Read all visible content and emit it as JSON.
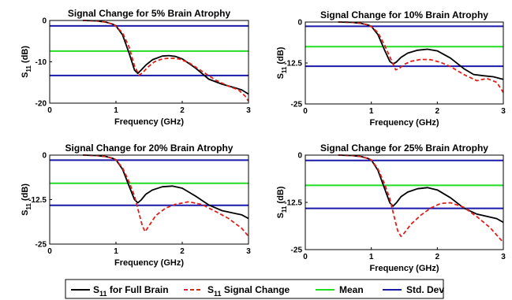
{
  "colors": {
    "full_brain": "#000000",
    "signal_change": "#e0201b",
    "mean": "#22dd22",
    "std_dev": "#1a1aaa"
  },
  "legend": {
    "items": [
      {
        "main": "S",
        "sub": "11",
        "rest": " for Full Brain",
        "color": "#000000",
        "dash": ""
      },
      {
        "main": "S",
        "sub": "11",
        "rest": " Signal Change",
        "color": "#e0201b",
        "dash": "5,3"
      },
      {
        "main": "Mean",
        "sub": "",
        "rest": "",
        "color": "#22dd22",
        "dash": ""
      },
      {
        "main": "Std. Dev",
        "sub": "",
        "rest": "",
        "color": "#1a1aaa",
        "dash": ""
      }
    ]
  },
  "chart_data": [
    {
      "type": "line",
      "title": "Signal Change for 5% Brain Atrophy",
      "xlabel": "Frequency (GHz)",
      "ylabel_main": "S",
      "ylabel_sub": "11",
      "ylabel_unit": " (dB)",
      "xlim": [
        0,
        3
      ],
      "ylim": [
        -20,
        0
      ],
      "xticks": [
        0,
        1,
        2,
        3
      ],
      "yticks": [
        0,
        -10,
        -20
      ],
      "ytick_labels": [
        "0",
        "-10",
        "-20"
      ],
      "hlines": {
        "mean": -7.4,
        "std_upper": -1.3,
        "std_lower": -13.3
      },
      "series": [
        {
          "key": "full",
          "x": [
            0.5,
            0.7,
            0.85,
            0.95,
            1.0,
            1.1,
            1.2,
            1.28,
            1.33,
            1.38,
            1.45,
            1.55,
            1.7,
            1.8,
            1.9,
            2.0,
            2.2,
            2.4,
            2.6,
            2.8,
            2.9,
            3.0
          ],
          "y": [
            0,
            -0.1,
            -0.4,
            -0.9,
            -1.3,
            -3.5,
            -8.0,
            -12.0,
            -12.8,
            -12.0,
            -10.8,
            -9.5,
            -8.6,
            -8.5,
            -8.7,
            -9.3,
            -11.5,
            -14.2,
            -15.4,
            -16.3,
            -16.8,
            -17.8
          ]
        },
        {
          "key": "change",
          "x": [
            0.5,
            0.7,
            0.85,
            0.95,
            1.0,
            1.1,
            1.2,
            1.28,
            1.35,
            1.4,
            1.48,
            1.58,
            1.7,
            1.82,
            1.95,
            2.1,
            2.3,
            2.5,
            2.7,
            2.85,
            2.95,
            3.0
          ],
          "y": [
            0,
            -0.1,
            -0.4,
            -0.9,
            -1.4,
            -3.0,
            -6.5,
            -11.0,
            -13.2,
            -12.7,
            -11.3,
            -10.0,
            -9.3,
            -9.1,
            -9.3,
            -10.2,
            -12.3,
            -14.4,
            -15.9,
            -16.8,
            -18.3,
            -19.5
          ]
        }
      ]
    },
    {
      "type": "line",
      "title": "Signal Change for 10% Brain Atrophy",
      "xlabel": "Frequency (GHz)",
      "ylabel_main": "S",
      "ylabel_sub": "11",
      "ylabel_unit": " (dB)",
      "xlim": [
        0,
        3
      ],
      "ylim": [
        -25,
        0
      ],
      "xticks": [
        0,
        1,
        2,
        3
      ],
      "yticks": [
        0,
        -12.5,
        -25
      ],
      "ytick_labels": [
        "0",
        "-12.5",
        "-25"
      ],
      "hlines": {
        "mean": -7.5,
        "std_upper": -1.3,
        "std_lower": -13.5
      },
      "series": [
        {
          "key": "full",
          "x": [
            0.5,
            0.7,
            0.85,
            0.95,
            1.0,
            1.1,
            1.2,
            1.28,
            1.33,
            1.38,
            1.45,
            1.55,
            1.7,
            1.85,
            2.0,
            2.2,
            2.4,
            2.55,
            2.7,
            2.85,
            3.0
          ],
          "y": [
            0,
            -0.1,
            -0.4,
            -0.9,
            -1.3,
            -3.8,
            -8.5,
            -12.0,
            -12.8,
            -12.2,
            -10.8,
            -9.5,
            -8.6,
            -8.3,
            -8.8,
            -11.0,
            -14.2,
            -16.0,
            -16.4,
            -16.7,
            -17.5
          ]
        },
        {
          "key": "change",
          "x": [
            0.5,
            0.7,
            0.85,
            0.95,
            1.0,
            1.1,
            1.2,
            1.3,
            1.37,
            1.42,
            1.5,
            1.6,
            1.75,
            1.9,
            2.05,
            2.2,
            2.4,
            2.6,
            2.75,
            2.9,
            3.0
          ],
          "y": [
            0,
            -0.1,
            -0.4,
            -0.9,
            -1.4,
            -3.2,
            -7.0,
            -11.5,
            -14.6,
            -14.2,
            -12.9,
            -12.0,
            -11.4,
            -11.5,
            -12.3,
            -13.6,
            -16.0,
            -17.9,
            -17.2,
            -18.4,
            -21.5
          ]
        }
      ]
    },
    {
      "type": "line",
      "title": "Signal Change for 20% Brain Atrophy",
      "xlabel": "Frequency (GHz)",
      "ylabel_main": "S",
      "ylabel_sub": "11",
      "ylabel_unit": " (dB)",
      "xlim": [
        0,
        3
      ],
      "ylim": [
        -25,
        0
      ],
      "xticks": [
        0,
        1,
        2,
        3
      ],
      "yticks": [
        0,
        -12.5,
        -25
      ],
      "ytick_labels": [
        "0",
        "-12.5",
        "-25"
      ],
      "hlines": {
        "mean": -7.9,
        "std_upper": -1.4,
        "std_lower": -14.1
      },
      "series": [
        {
          "key": "full",
          "x": [
            0.5,
            0.7,
            0.85,
            0.95,
            1.0,
            1.1,
            1.2,
            1.28,
            1.33,
            1.38,
            1.45,
            1.55,
            1.7,
            1.85,
            2.0,
            2.2,
            2.4,
            2.6,
            2.8,
            2.9,
            3.0
          ],
          "y": [
            0,
            -0.1,
            -0.4,
            -0.9,
            -1.3,
            -4.0,
            -8.8,
            -12.5,
            -13.4,
            -12.6,
            -11.0,
            -9.8,
            -8.9,
            -8.7,
            -9.3,
            -11.5,
            -14.0,
            -15.6,
            -16.4,
            -16.8,
            -17.8
          ]
        },
        {
          "key": "change",
          "x": [
            0.5,
            0.7,
            0.85,
            0.95,
            1.0,
            1.1,
            1.2,
            1.28,
            1.35,
            1.4,
            1.44,
            1.5,
            1.6,
            1.75,
            1.9,
            2.1,
            2.3,
            2.5,
            2.7,
            2.9,
            3.0
          ],
          "y": [
            0,
            -0.1,
            -0.4,
            -0.9,
            -1.3,
            -3.6,
            -7.6,
            -11.5,
            -16.5,
            -20.0,
            -21.5,
            -19.8,
            -17.0,
            -14.9,
            -13.8,
            -13.1,
            -13.9,
            -15.8,
            -17.8,
            -20.6,
            -22.8
          ]
        }
      ]
    },
    {
      "type": "line",
      "title": "Signal Change for 25% Brain Atrophy",
      "xlabel": "Frequency (GHz)",
      "ylabel_main": "S",
      "ylabel_sub": "11",
      "ylabel_unit": " (dB)",
      "xlim": [
        0,
        3
      ],
      "ylim": [
        -25,
        0
      ],
      "xticks": [
        0,
        1,
        2,
        3
      ],
      "yticks": [
        0,
        -12.5,
        -25
      ],
      "ytick_labels": [
        "0",
        "-12.5",
        "-25"
      ],
      "hlines": {
        "mean": -8.0,
        "std_upper": -1.4,
        "std_lower": -14.1
      },
      "series": [
        {
          "key": "full",
          "x": [
            0.5,
            0.7,
            0.85,
            0.95,
            1.0,
            1.1,
            1.2,
            1.28,
            1.33,
            1.38,
            1.45,
            1.55,
            1.7,
            1.85,
            2.0,
            2.2,
            2.4,
            2.6,
            2.8,
            2.9,
            3.0
          ],
          "y": [
            0,
            -0.1,
            -0.4,
            -0.9,
            -1.3,
            -4.0,
            -8.8,
            -12.6,
            -13.5,
            -12.6,
            -11.0,
            -9.8,
            -8.9,
            -8.6,
            -9.2,
            -11.3,
            -14.0,
            -15.6,
            -16.4,
            -16.8,
            -17.8
          ]
        },
        {
          "key": "change",
          "x": [
            0.5,
            0.7,
            0.85,
            0.95,
            1.0,
            1.1,
            1.2,
            1.28,
            1.35,
            1.4,
            1.45,
            1.5,
            1.6,
            1.75,
            1.9,
            2.05,
            2.2,
            2.4,
            2.6,
            2.8,
            3.0
          ],
          "y": [
            0,
            -0.1,
            -0.4,
            -0.9,
            -1.3,
            -3.6,
            -7.6,
            -11.5,
            -16.5,
            -20.0,
            -21.5,
            -20.6,
            -18.3,
            -15.9,
            -14.0,
            -12.8,
            -12.6,
            -13.8,
            -16.3,
            -19.2,
            -23.1
          ]
        }
      ]
    }
  ]
}
